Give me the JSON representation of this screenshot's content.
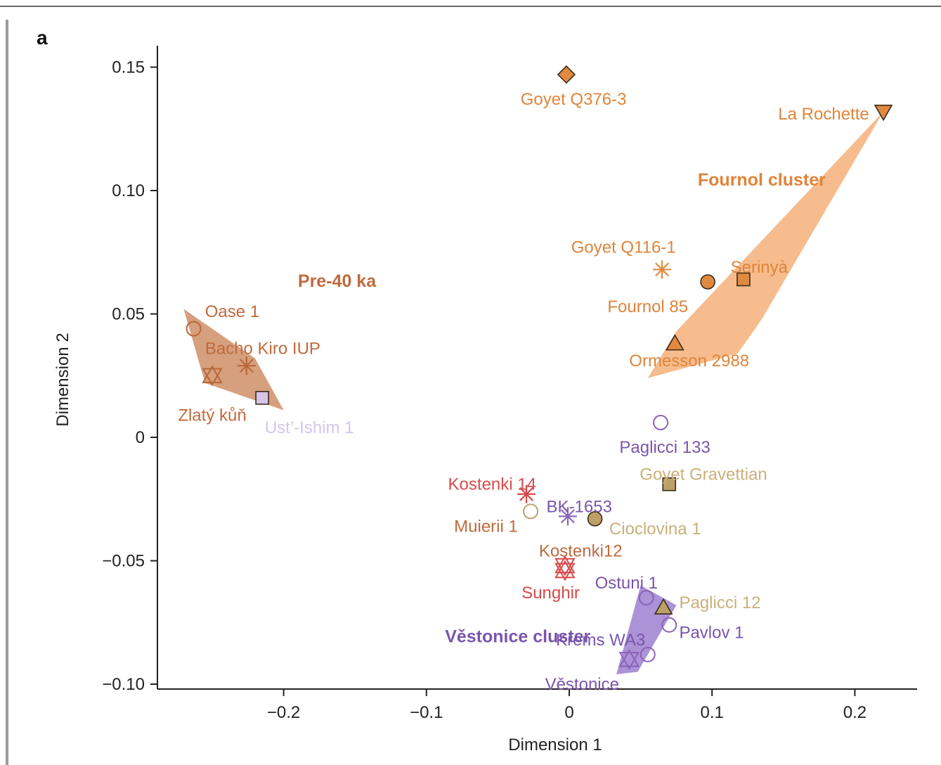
{
  "panel_label": "a",
  "chart_data": {
    "type": "scatter",
    "xlabel": "Dimension 1",
    "ylabel": "Dimension 2",
    "xlim": [
      -0.285,
      0.24
    ],
    "ylim": [
      -0.102,
      0.16
    ],
    "x_ticks": [
      -0.2,
      -0.1,
      0,
      0.1,
      0.2
    ],
    "x_tick_labels": [
      "−0.2",
      "−0.1",
      "0",
      "0.1",
      "0.2"
    ],
    "y_ticks": [
      0.15,
      0.1,
      0.05,
      0,
      -0.05,
      -0.1
    ],
    "y_tick_labels": [
      "0.15",
      "0.10",
      "0.05",
      "0",
      "−0.05",
      "−0.10"
    ],
    "grid": false,
    "legend": "none",
    "colors": {
      "fournol": "#e08a40",
      "fournol_label": "#e0843a",
      "fournol_hull": "#f5b07a",
      "pre40": "#b8683a",
      "pre40_label": "#c06a3e",
      "pre40_hull": "#cf8e66",
      "vestonice": "#8a63b8",
      "vestonice_label": "#7a55ad",
      "vestonice_hull": "#9e7fd0",
      "khaki": "#bca068",
      "khaki_label": "#c9b07a",
      "red": "#d84a4a",
      "light_purple": "#d6c4ea"
    },
    "clusters": [
      {
        "name": "Fournol cluster",
        "color": "fournol_hull",
        "label_color": "fournol_label",
        "hull": [
          [
            0.055,
            0.024
          ],
          [
            0.075,
            0.043
          ],
          [
            0.22,
            0.132
          ],
          [
            0.135,
            0.048
          ],
          [
            0.118,
            0.034
          ]
        ],
        "label_x": 0.09,
        "label_y": 0.102
      },
      {
        "name": "Pre-40 ka",
        "color": "pre40_hull",
        "label_color": "pre40_label",
        "hull": [
          [
            -0.27,
            0.052
          ],
          [
            -0.255,
            0.022
          ],
          [
            -0.2,
            0.011
          ],
          [
            -0.22,
            0.032
          ]
        ],
        "label_x": -0.19,
        "label_y": 0.061
      },
      {
        "name": "Věstonice cluster",
        "color": "vestonice_hull",
        "label_color": "vestonice_label",
        "hull": [
          [
            0.033,
            -0.096
          ],
          [
            0.048,
            -0.095
          ],
          [
            0.075,
            -0.068
          ],
          [
            0.05,
            -0.06
          ]
        ],
        "label_x": -0.087,
        "label_y": -0.083
      }
    ],
    "points": [
      {
        "name": "Goyet Q376-3",
        "x": -0.002,
        "y": 0.147,
        "shape": "diamond",
        "color": "fournol",
        "fill": true,
        "label_color": "fournol_label",
        "lx": 0.003,
        "ly": 0.137,
        "anchor": "middle"
      },
      {
        "name": "La Rochette",
        "x": 0.22,
        "y": 0.132,
        "shape": "triangle-down",
        "color": "fournol",
        "fill": true,
        "label_color": "fournol_label",
        "lx": 0.21,
        "ly": 0.131,
        "anchor": "end"
      },
      {
        "name": "Goyet Q116-1",
        "x": 0.065,
        "y": 0.068,
        "shape": "asterisk",
        "color": "fournol",
        "fill": false,
        "label_color": "fournol_label",
        "lx": 0.038,
        "ly": 0.077,
        "anchor": "middle"
      },
      {
        "name": "Fournol 85",
        "x": 0.097,
        "y": 0.063,
        "shape": "circle",
        "color": "fournol",
        "fill": true,
        "label_color": "fournol_label",
        "lx": 0.055,
        "ly": 0.053,
        "anchor": "middle"
      },
      {
        "name": "Serinyà",
        "x": 0.122,
        "y": 0.064,
        "shape": "square",
        "color": "fournol",
        "fill": true,
        "label_color": "fournol_label",
        "lx": 0.113,
        "ly": 0.069,
        "anchor": "start"
      },
      {
        "name": "Ormesson 2988",
        "x": 0.074,
        "y": 0.038,
        "shape": "triangle",
        "color": "fournol",
        "fill": true,
        "label_color": "fournol_label",
        "lx": 0.084,
        "ly": 0.031,
        "anchor": "middle"
      },
      {
        "name": "Oase 1",
        "x": -0.263,
        "y": 0.044,
        "shape": "circle",
        "color": "pre40",
        "fill": false,
        "label_color": "pre40_label",
        "lx": -0.236,
        "ly": 0.051,
        "anchor": "middle"
      },
      {
        "name": "Bacho Kiro IUP",
        "x": -0.226,
        "y": 0.029,
        "shape": "asterisk",
        "color": "pre40",
        "fill": false,
        "label_color": "pre40_label",
        "lx": -0.255,
        "ly": 0.036,
        "anchor": "start"
      },
      {
        "name": "Zlatý kůň",
        "x": -0.25,
        "y": 0.025,
        "shape": "star-of-david",
        "color": "pre40",
        "fill": false,
        "label_color": "pre40_label",
        "lx": -0.25,
        "ly": 0.009,
        "anchor": "middle"
      },
      {
        "name": "Ust’-Ishim 1",
        "x": -0.215,
        "y": 0.016,
        "shape": "square",
        "color": "light_purple",
        "fill": true,
        "label_color": "light_purple",
        "lx": -0.182,
        "ly": 0.004,
        "anchor": "middle"
      },
      {
        "name": "Paglicci 133",
        "x": 0.064,
        "y": 0.006,
        "shape": "circle",
        "color": "vestonice",
        "fill": false,
        "label_color": "vestonice_label",
        "lx": 0.067,
        "ly": -0.004,
        "anchor": "middle"
      },
      {
        "name": "Goyet Gravettian",
        "x": 0.07,
        "y": -0.019,
        "shape": "square",
        "color": "khaki",
        "fill": true,
        "label_color": "khaki_label",
        "lx": 0.094,
        "ly": -0.015,
        "anchor": "middle"
      },
      {
        "name": "Kostenki 14",
        "x": -0.03,
        "y": -0.023,
        "shape": "asterisk",
        "color": "red",
        "fill": false,
        "label_color": "red",
        "lx": -0.054,
        "ly": -0.019,
        "anchor": "middle"
      },
      {
        "name": "BK-1653",
        "x": -0.001,
        "y": -0.032,
        "shape": "asterisk",
        "color": "vestonice",
        "fill": false,
        "label_color": "vestonice_label",
        "lx": 0.007,
        "ly": -0.028,
        "anchor": "middle"
      },
      {
        "name": "Muierii 1",
        "x": -0.027,
        "y": -0.03,
        "shape": "circle",
        "color": "khaki",
        "fill": false,
        "label_color": "pre40_label",
        "lx": -0.036,
        "ly": -0.036,
        "anchor": "end"
      },
      {
        "name": "Cioclovina 1",
        "x": 0.018,
        "y": -0.033,
        "shape": "circle",
        "color": "khaki",
        "fill": true,
        "label_color": "khaki_label",
        "lx": 0.028,
        "ly": -0.037,
        "anchor": "start"
      },
      {
        "name": "Kostenki12",
        "x": -0.003,
        "y": -0.052,
        "shape": "star-of-david",
        "color": "red",
        "fill": false,
        "label_color": "pre40_label",
        "lx": 0.008,
        "ly": -0.046,
        "anchor": "middle"
      },
      {
        "name": "Sunghir",
        "x": -0.003,
        "y": -0.054,
        "shape": "star-of-david",
        "color": "red",
        "fill": false,
        "label_color": "red",
        "lx": -0.013,
        "ly": -0.063,
        "anchor": "middle"
      },
      {
        "name": "Ostuni 1",
        "x": 0.054,
        "y": -0.065,
        "shape": "circle",
        "color": "vestonice",
        "fill": false,
        "label_color": "vestonice_label",
        "lx": 0.018,
        "ly": -0.059,
        "anchor": "start"
      },
      {
        "name": "Paglicci 12",
        "x": 0.066,
        "y": -0.069,
        "shape": "triangle",
        "color": "khaki",
        "fill": true,
        "label_color": "khaki_label",
        "lx": 0.077,
        "ly": -0.067,
        "anchor": "start"
      },
      {
        "name": "Pavlov 1",
        "x": 0.07,
        "y": -0.076,
        "shape": "circle",
        "color": "vestonice",
        "fill": false,
        "label_color": "vestonice_label",
        "lx": 0.077,
        "ly": -0.079,
        "anchor": "start"
      },
      {
        "name": "Krems WA3",
        "x": 0.055,
        "y": -0.088,
        "shape": "circle",
        "color": "vestonice",
        "fill": false,
        "label_color": "vestonice_label",
        "lx": 0.022,
        "ly": -0.082,
        "anchor": "middle"
      },
      {
        "name": "Věstonice",
        "x": 0.042,
        "y": -0.09,
        "shape": "star-of-david",
        "color": "vestonice",
        "fill": false,
        "label_color": "vestonice_label",
        "lx": 0.009,
        "ly": -0.1,
        "anchor": "middle"
      }
    ]
  }
}
